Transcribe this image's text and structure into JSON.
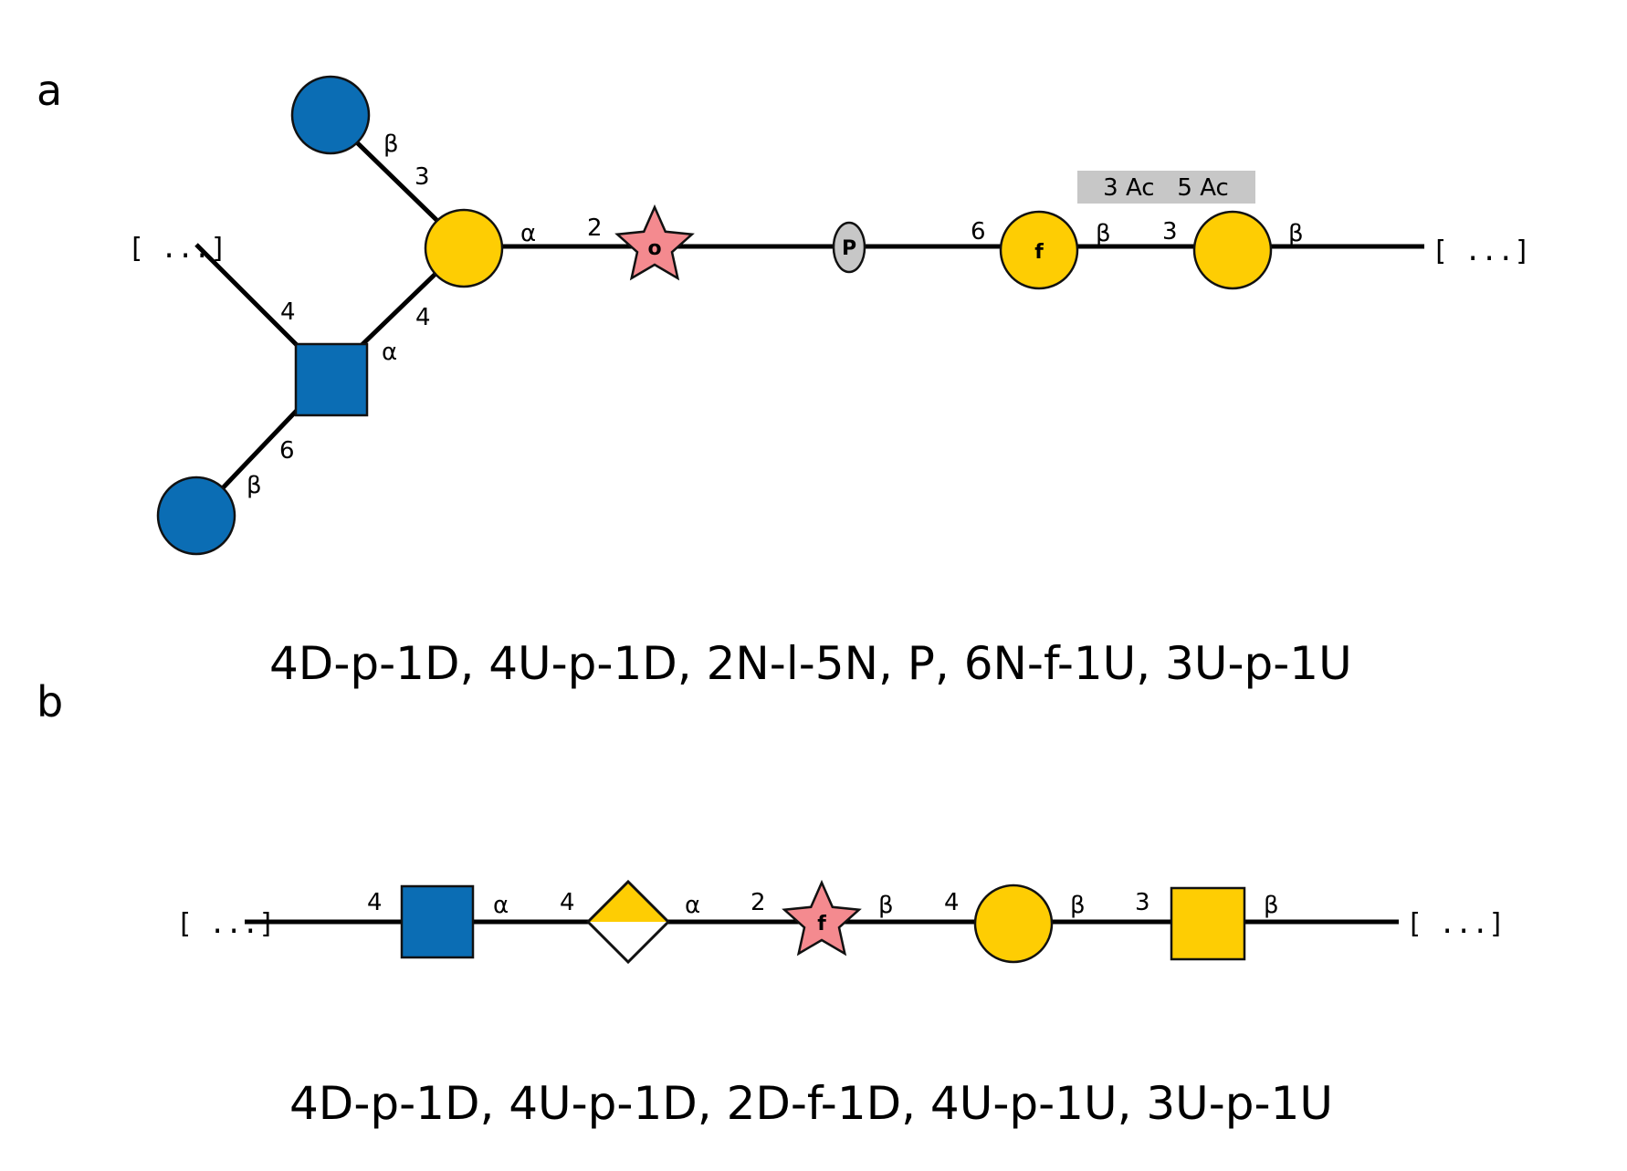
{
  "colors": {
    "blue": "#0b6db4",
    "yellow": "#fecd03",
    "pink": "#f48a8f",
    "gray": "#c7c7c7"
  },
  "panels": {
    "a": {
      "letter": "a",
      "notation": "4D-p-1D, 4U-p-1D, 2N-l-5N, P, 6N-f-1U, 3U-p-1U",
      "bracket_left": "[ ...]",
      "bracket_right": "[ ...]",
      "star_letter": "o",
      "phosphate_letter": "P",
      "galf_letter": "f",
      "modification": "3 Ac   5 Ac",
      "labels": {
        "beta_top": "β",
        "pos_top": "3",
        "alpha_main": "α",
        "pos_star": "2",
        "pos_6": "6",
        "beta_mid": "β",
        "pos_3": "3",
        "beta_end": "β",
        "pos_branch_4": "4",
        "pos_square_4": "4",
        "alpha_square": "α",
        "pos_square_6": "6",
        "beta_bottom": "β"
      }
    },
    "b": {
      "letter": "b",
      "notation": "4D-p-1D, 4U-p-1D, 2D-f-1D, 4U-p-1U, 3U-p-1U",
      "bracket_left": "[ ...]",
      "bracket_right": "[ ...]",
      "star_letter": "f",
      "labels": {
        "pos_4a": "4",
        "alpha_1": "α",
        "pos_4b": "4",
        "alpha_2": "α",
        "pos_2": "2",
        "beta_1": "β",
        "pos_4c": "4",
        "beta_2": "β",
        "pos_3": "3",
        "beta_3": "β"
      }
    }
  }
}
